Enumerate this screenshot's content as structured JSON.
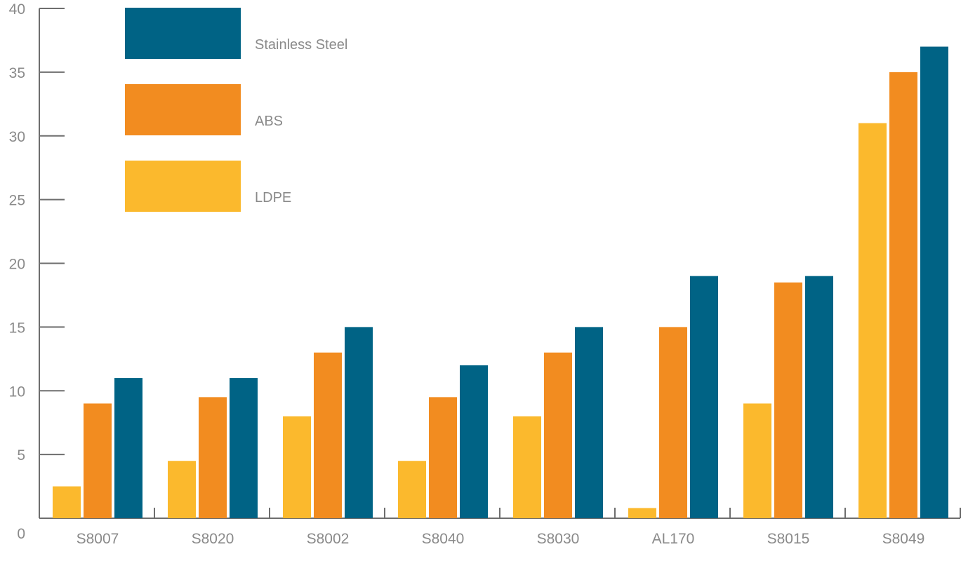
{
  "chart_data": {
    "type": "bar",
    "categories": [
      "S8007",
      "S8020",
      "S8002",
      "S8040",
      "S8030",
      "AL170",
      "S8015",
      "S8049"
    ],
    "series": [
      {
        "name": "LDPE",
        "color": "#fbb92d",
        "values": [
          2.5,
          4.5,
          8,
          4.5,
          8,
          0.8,
          9,
          31
        ]
      },
      {
        "name": "ABS",
        "color": "#f28c20",
        "values": [
          9,
          9.5,
          13,
          9.5,
          13,
          15,
          18.5,
          35
        ]
      },
      {
        "name": "Stainless Steel",
        "color": "#006385",
        "values": [
          11,
          11,
          15,
          12,
          15,
          19,
          19,
          37
        ]
      }
    ],
    "y_ticks": [
      "0",
      "5",
      "10",
      "15",
      "20",
      "25",
      "30",
      "35",
      "40"
    ],
    "ylim": [
      0,
      40
    ],
    "grid": false,
    "legend_position": "top-left",
    "legend_order": [
      "Stainless Steel",
      "ABS",
      "LDPE"
    ]
  }
}
